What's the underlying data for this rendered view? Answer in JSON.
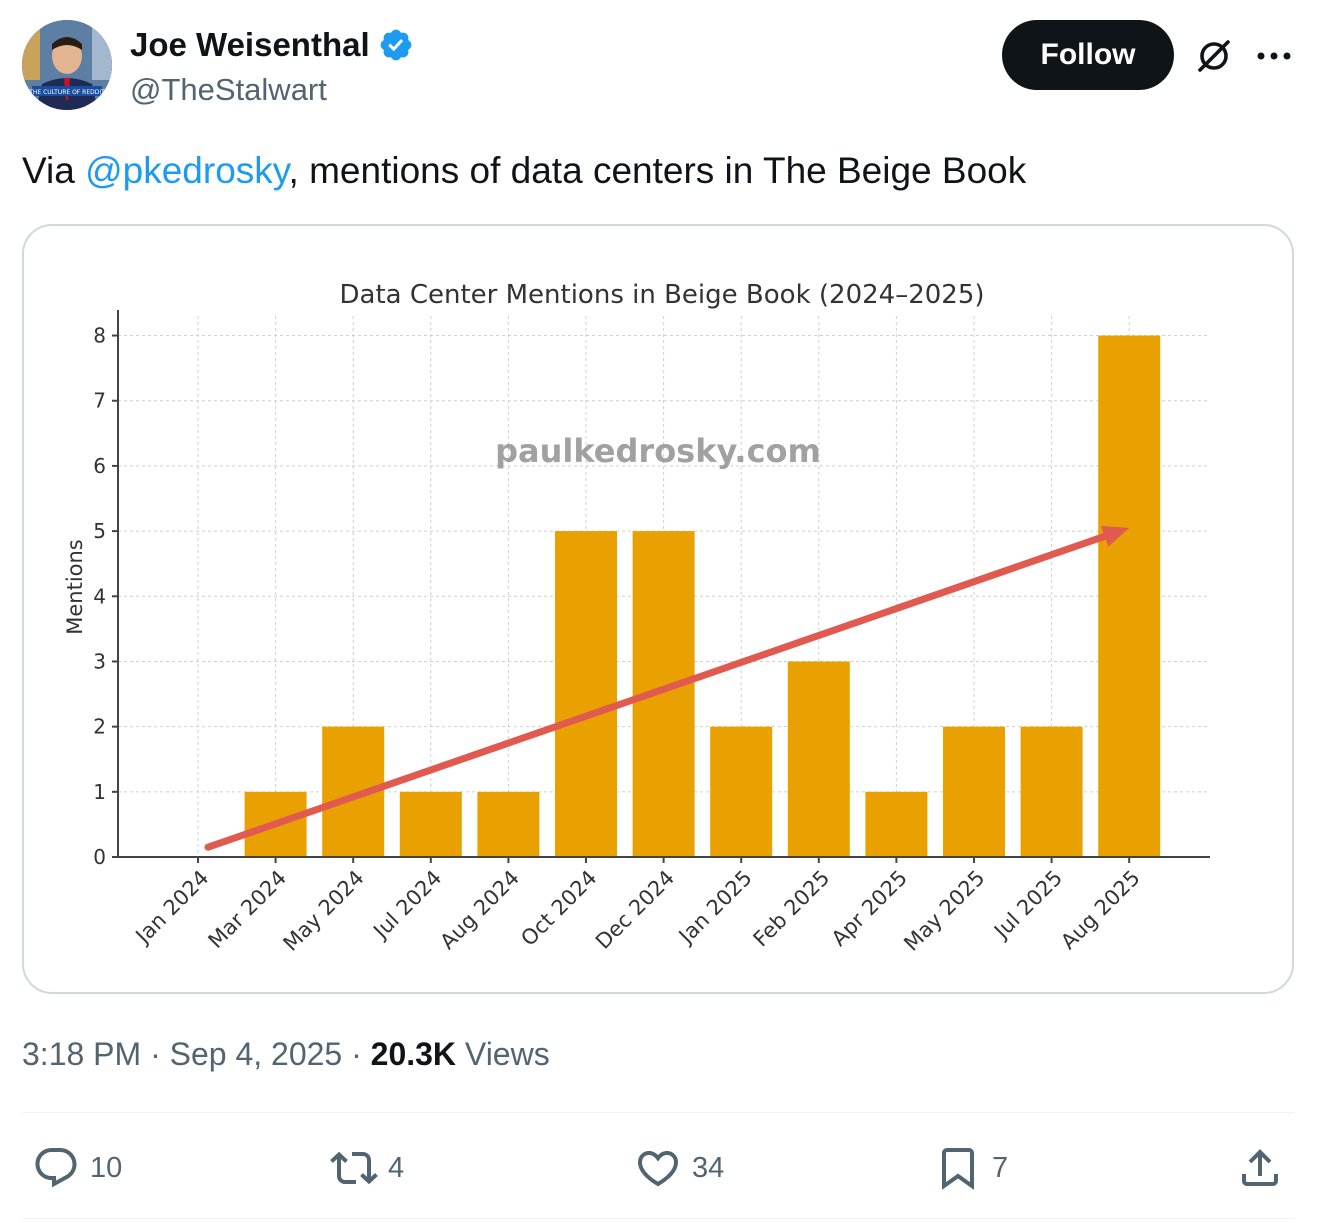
{
  "author": {
    "display_name": "Joe Weisenthal",
    "handle": "@TheStalwart",
    "avatar_caption": "THE CULTURE OF REDDIT"
  },
  "header": {
    "follow_label": "Follow"
  },
  "tweet": {
    "text_prefix": "Via ",
    "mention": "@pkedrosky",
    "text_suffix": ", mentions of data centers in The Beige Book"
  },
  "meta": {
    "time": "3:18 PM",
    "separator": " · ",
    "date": "Sep 4, 2025",
    "views_count": "20.3K",
    "views_label": " Views"
  },
  "actions": {
    "replies": "10",
    "reposts": "4",
    "likes": "34",
    "bookmarks": "7"
  },
  "colors": {
    "bar": "#e8a100",
    "arrow": "#e15a4f",
    "accent": "#1d9bf0",
    "verified": "#1d9bf0"
  },
  "chart_data": {
    "type": "bar",
    "title": "Data Center Mentions in Beige Book (2024–2025)",
    "ylabel": "Mentions",
    "xlabel": "",
    "watermark": "paulkedrosky.com",
    "categories": [
      "Jan 2024",
      "Mar 2024",
      "May 2024",
      "Jul 2024",
      "Aug 2024",
      "Oct 2024",
      "Dec 2024",
      "Jan 2025",
      "Feb 2025",
      "Apr 2025",
      "May 2025",
      "Jul 2025",
      "Aug 2025"
    ],
    "values": [
      0,
      1,
      2,
      1,
      1,
      5,
      5,
      2,
      3,
      1,
      2,
      2,
      8
    ],
    "ylim": [
      0,
      8.3
    ],
    "yticks": [
      0,
      1,
      2,
      3,
      4,
      5,
      6,
      7,
      8
    ],
    "grid": true,
    "trend_arrow": {
      "from": [
        "Jan 2024",
        0.15
      ],
      "to": [
        "Aug 2025",
        5.05
      ]
    }
  }
}
